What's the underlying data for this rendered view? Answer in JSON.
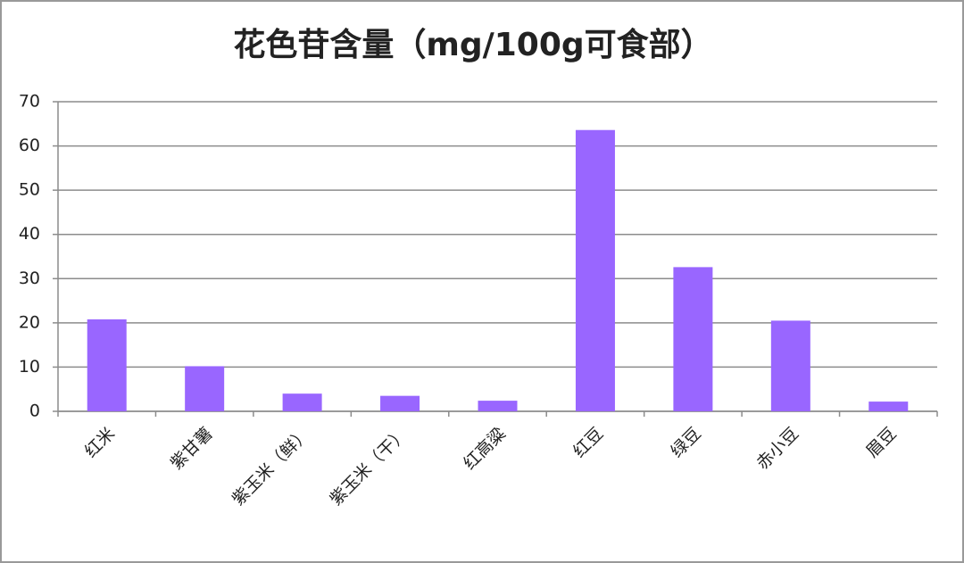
{
  "chart_data": {
    "type": "bar",
    "title": "花色苷含量（mg/100g可食部）",
    "categories": [
      "红米",
      "紫甘薯",
      "紫玉米（鲜）",
      "紫玉米（干）",
      "红高粱",
      "红豆",
      "绿豆",
      "赤小豆",
      "眉豆"
    ],
    "values": [
      20.8,
      10.2,
      4.0,
      3.5,
      2.4,
      63.6,
      32.6,
      20.5,
      2.2
    ],
    "color": "#9966ff",
    "ylim": [
      0,
      70
    ],
    "yticks": [
      0,
      10,
      20,
      30,
      40,
      50,
      60,
      70
    ],
    "grid": true
  }
}
